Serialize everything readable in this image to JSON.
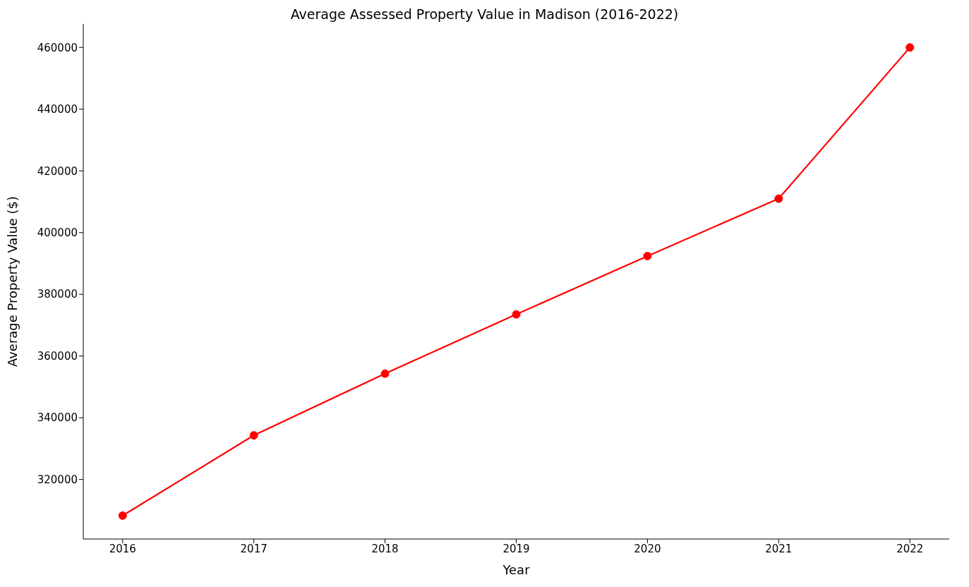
{
  "chart_data": {
    "type": "line",
    "title": "Average Assessed Property Value in Madison (2016-2022)",
    "xlabel": "Year",
    "ylabel": "Average Property Value ($)",
    "x": [
      2016,
      2017,
      2018,
      2019,
      2020,
      2021,
      2022
    ],
    "series": [
      {
        "color": "#ff0000",
        "values": [
          308300,
          334300,
          354300,
          373500,
          392400,
          411000,
          460000
        ]
      }
    ],
    "xlim": [
      2015.7,
      2022.3
    ],
    "xticks": [
      2016,
      2017,
      2018,
      2019,
      2020,
      2021,
      2022
    ],
    "ylim": [
      300700,
      467600
    ],
    "yticks": [
      320000,
      340000,
      360000,
      380000,
      400000,
      420000,
      440000,
      460000
    ],
    "grid": false,
    "legend": false,
    "marker": "circle",
    "line_style": "solid"
  }
}
